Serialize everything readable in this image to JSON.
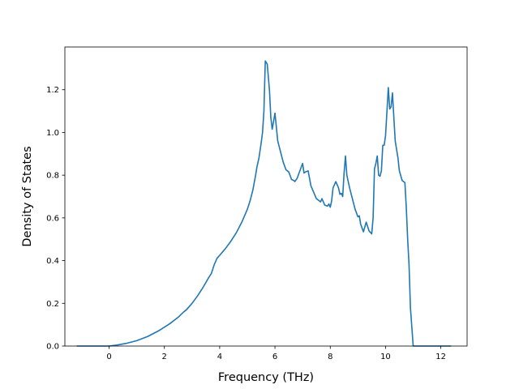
{
  "chart_data": {
    "type": "line",
    "title": "",
    "xlabel": "Frequency (THz)",
    "ylabel": "Density of States",
    "xlim": [
      -1.6,
      12.95
    ],
    "ylim": [
      0.0,
      1.4
    ],
    "xticks": [
      0,
      2,
      4,
      6,
      8,
      10,
      12
    ],
    "yticks": [
      0.0,
      0.2,
      0.4,
      0.6,
      0.8,
      1.0,
      1.2
    ],
    "grid": false,
    "legend": "none",
    "series": [
      {
        "color": "#1f77b4",
        "x": [
          -1.15,
          -0.5,
          0.0,
          0.3,
          0.6,
          1.0,
          1.4,
          1.8,
          2.2,
          2.5,
          2.7,
          2.8,
          3.0,
          3.2,
          3.4,
          3.6,
          3.7,
          3.8,
          3.9,
          4.0,
          4.2,
          4.4,
          4.6,
          4.8,
          5.0,
          5.1,
          5.2,
          5.3,
          5.35,
          5.42,
          5.5,
          5.55,
          5.6,
          5.65,
          5.72,
          5.8,
          5.85,
          5.9,
          6.0,
          6.1,
          6.2,
          6.3,
          6.4,
          6.5,
          6.6,
          6.68,
          6.72,
          6.8,
          7.0,
          7.05,
          7.1,
          7.2,
          7.3,
          7.5,
          7.6,
          7.65,
          7.7,
          7.8,
          7.9,
          7.95,
          8.0,
          8.05,
          8.1,
          8.2,
          8.3,
          8.35,
          8.4,
          8.45,
          8.5,
          8.55,
          8.6,
          8.7,
          8.8,
          8.9,
          9.0,
          9.05,
          9.1,
          9.2,
          9.3,
          9.4,
          9.5,
          9.55,
          9.6,
          9.65,
          9.7,
          9.75,
          9.8,
          9.85,
          9.9,
          9.95,
          10.0,
          10.1,
          10.15,
          10.2,
          10.25,
          10.3,
          10.35,
          10.4,
          10.45,
          10.5,
          10.6,
          10.7,
          10.75,
          10.8,
          10.85,
          10.9,
          11.0,
          11.1,
          11.2,
          11.25,
          11.5,
          12.35
        ],
        "y": [
          0.0,
          0.0,
          0.0,
          0.005,
          0.012,
          0.025,
          0.045,
          0.072,
          0.105,
          0.135,
          0.16,
          0.17,
          0.2,
          0.235,
          0.275,
          0.32,
          0.34,
          0.38,
          0.41,
          0.425,
          0.455,
          0.49,
          0.53,
          0.58,
          0.64,
          0.68,
          0.73,
          0.8,
          0.84,
          0.88,
          0.95,
          1.0,
          1.1,
          1.335,
          1.32,
          1.2,
          1.07,
          1.015,
          1.09,
          0.96,
          0.91,
          0.86,
          0.825,
          0.815,
          0.78,
          0.775,
          0.77,
          0.785,
          0.855,
          0.81,
          0.815,
          0.82,
          0.75,
          0.69,
          0.68,
          0.675,
          0.69,
          0.66,
          0.655,
          0.665,
          0.65,
          0.68,
          0.74,
          0.77,
          0.74,
          0.71,
          0.715,
          0.7,
          0.81,
          0.89,
          0.8,
          0.74,
          0.69,
          0.64,
          0.605,
          0.61,
          0.57,
          0.535,
          0.58,
          0.54,
          0.525,
          0.6,
          0.83,
          0.855,
          0.89,
          0.8,
          0.795,
          0.82,
          0.94,
          0.94,
          0.985,
          1.21,
          1.11,
          1.12,
          1.185,
          1.07,
          0.96,
          0.92,
          0.88,
          0.82,
          0.775,
          0.765,
          0.65,
          0.5,
          0.38,
          0.18,
          0.0,
          0.0,
          0.0,
          0.0,
          0.0,
          0.0
        ]
      }
    ]
  }
}
